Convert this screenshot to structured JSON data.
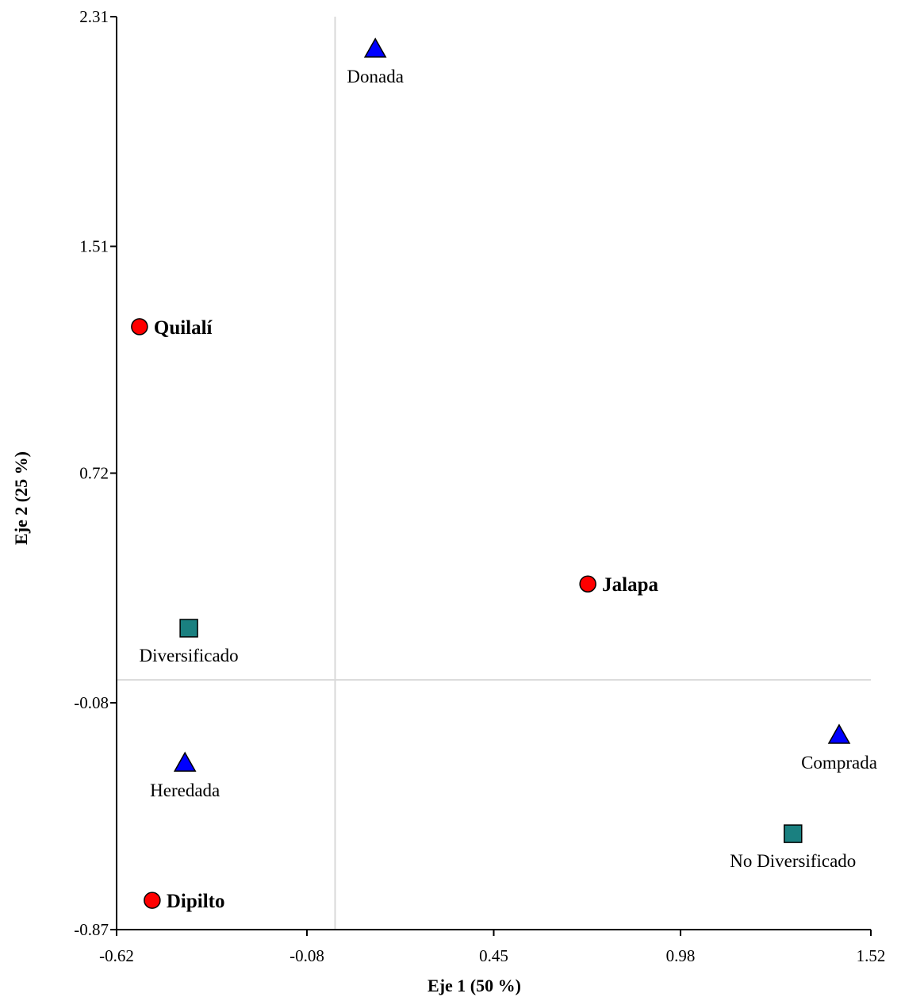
{
  "chart_data": {
    "type": "scatter",
    "x_label": "Eje 1 (50 %)",
    "y_label": "Eje 2 (25 %)",
    "xlim": [
      -0.62,
      1.52
    ],
    "xticks": [
      -0.62,
      -0.08,
      0.45,
      0.98,
      1.52
    ],
    "ylim": [
      -0.87,
      2.31
    ],
    "yticks": [
      -0.87,
      -0.08,
      0.72,
      1.51,
      2.31
    ],
    "zero_lines": true,
    "series": [
      {
        "marker": "circle",
        "color": "#ff0000",
        "label_position": "right",
        "label_bold": true,
        "labels": [
          "Quilalí",
          "Jalapa",
          "Dipilto"
        ],
        "x": [
          -0.555,
          0.717,
          -0.519
        ],
        "y": [
          1.23,
          0.334,
          -0.768
        ]
      },
      {
        "marker": "triangle",
        "color": "#0000ff",
        "label_position": "below",
        "label_bold": false,
        "labels": [
          "Donada",
          "Heredada",
          "Comprada"
        ],
        "x": [
          0.114,
          -0.426,
          1.43
        ],
        "y": [
          2.197,
          -0.29,
          -0.193
        ]
      },
      {
        "marker": "square",
        "color": "#1a8080",
        "label_position": "below",
        "label_bold": false,
        "labels": [
          "Diversificado",
          "No Diversificado"
        ],
        "x": [
          -0.415,
          1.299
        ],
        "y": [
          0.18,
          -0.536
        ]
      }
    ]
  }
}
